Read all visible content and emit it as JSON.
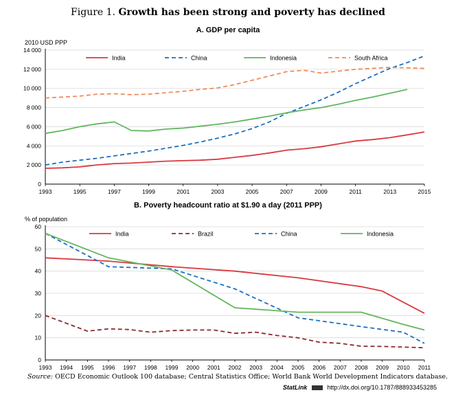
{
  "figure": {
    "label": "Figure 1.",
    "title": "Growth has been strong and poverty has declined",
    "source_label": "Source:",
    "source_text": "OECD Economic Outlook 100 database; Central Statistics Office; World Bank World Development Indicators database.",
    "statlink_label": "StatLink",
    "statlink_url": "http://dx.doi.org/10.1787/888933453285"
  },
  "chart_data": [
    {
      "type": "line",
      "title": "A. GDP per capita",
      "ylabel": "2010 USD PPP",
      "xlabel": "",
      "xlim": [
        1993,
        2015
      ],
      "ylim": [
        0,
        14000
      ],
      "x_ticks": [
        "1993",
        "1995",
        "1997",
        "1999",
        "2001",
        "2003",
        "2005",
        "2007",
        "2009",
        "2011",
        "2013",
        "2015"
      ],
      "y_ticks": [
        "0",
        "2 000",
        "4 000",
        "6 000",
        "8 000",
        "10 000",
        "12 000",
        "14 000"
      ],
      "legend_position": "top",
      "grid": "horizontal",
      "series": [
        {
          "name": "India",
          "color": "#d9393e",
          "dash": "solid",
          "x": [
            1993,
            1994,
            1995,
            1996,
            1997,
            1998,
            1999,
            2000,
            2001,
            2002,
            2003,
            2004,
            2005,
            2006,
            2007,
            2008,
            2009,
            2010,
            2011,
            2012,
            2013,
            2014,
            2015
          ],
          "values": [
            1650,
            1700,
            1800,
            2000,
            2150,
            2200,
            2300,
            2400,
            2450,
            2500,
            2600,
            2800,
            3000,
            3250,
            3550,
            3700,
            3900,
            4200,
            4500,
            4650,
            4850,
            5150,
            5450
          ]
        },
        {
          "name": "China",
          "color": "#1b6fbf",
          "dash": "dashed",
          "x": [
            1993,
            1994,
            1995,
            1996,
            1997,
            1998,
            1999,
            2000,
            2001,
            2002,
            2003,
            2004,
            2005,
            2006,
            2007,
            2008,
            2009,
            2010,
            2011,
            2012,
            2013,
            2014,
            2015
          ],
          "values": [
            2000,
            2300,
            2500,
            2700,
            2950,
            3200,
            3450,
            3750,
            4050,
            4400,
            4800,
            5250,
            5800,
            6500,
            7400,
            8100,
            8800,
            9600,
            10500,
            11300,
            12100,
            12700,
            13400
          ]
        },
        {
          "name": "Indonesia",
          "color": "#62b55e",
          "dash": "solid",
          "x": [
            1993,
            1994,
            1995,
            1996,
            1997,
            1998,
            1999,
            2000,
            2001,
            2002,
            2003,
            2004,
            2005,
            2006,
            2007,
            2008,
            2009,
            2010,
            2011,
            2012,
            2013,
            2014
          ],
          "values": [
            5300,
            5600,
            6000,
            6300,
            6500,
            5600,
            5550,
            5750,
            5850,
            6050,
            6250,
            6500,
            6800,
            7100,
            7450,
            7750,
            8000,
            8350,
            8750,
            9100,
            9500,
            9900
          ]
        },
        {
          "name": "South Africa",
          "color": "#f08a58",
          "dash": "dashed",
          "x": [
            1993,
            1994,
            1995,
            1996,
            1997,
            1998,
            1999,
            2000,
            2001,
            2002,
            2003,
            2004,
            2005,
            2006,
            2007,
            2008,
            2009,
            2010,
            2011,
            2012,
            2013,
            2014,
            2015
          ],
          "values": [
            9000,
            9100,
            9200,
            9400,
            9450,
            9350,
            9400,
            9550,
            9700,
            9900,
            10050,
            10400,
            10850,
            11300,
            11750,
            11900,
            11600,
            11800,
            12000,
            12100,
            12200,
            12150,
            12100
          ]
        }
      ]
    },
    {
      "type": "line",
      "title": "B. Poverty headcount ratio at $1.90 a day (2011 PPP)",
      "ylabel": "% of population",
      "xlabel": "",
      "xlim": [
        1993,
        2011
      ],
      "ylim": [
        0,
        60
      ],
      "x_ticks": [
        "1993",
        "1994",
        "1995",
        "1996",
        "1997",
        "1998",
        "1999",
        "2000",
        "2001",
        "2002",
        "2003",
        "2004",
        "2005",
        "2006",
        "2007",
        "2008",
        "2009",
        "2010",
        "2011"
      ],
      "y_ticks": [
        "0",
        "10",
        "20",
        "30",
        "40",
        "50",
        "60"
      ],
      "legend_position": "top",
      "grid": "horizontal",
      "series": [
        {
          "name": "India",
          "color": "#d9393e",
          "dash": "solid",
          "x": [
            1993,
            1996,
            1999,
            2002,
            2005,
            2008,
            2009,
            2010,
            2011
          ],
          "values": [
            46,
            44.5,
            42,
            40,
            37,
            33,
            31,
            26,
            21
          ]
        },
        {
          "name": "Brazil",
          "color": "#8b2a2e",
          "dash": "dashed",
          "x": [
            1993,
            1994,
            1995,
            1996,
            1997,
            1998,
            1999,
            2000,
            2001,
            2002,
            2003,
            2004,
            2005,
            2006,
            2007,
            2008,
            2009,
            2010,
            2011
          ],
          "values": [
            20,
            16.5,
            13,
            14,
            13.7,
            12.5,
            13.2,
            13.5,
            13.5,
            12,
            12.5,
            11,
            10,
            8,
            7.5,
            6.2,
            6.1,
            5.8,
            5.5
          ]
        },
        {
          "name": "China",
          "color": "#1b6fbf",
          "dash": "dashed",
          "x": [
            1993,
            1996,
            1999,
            2002,
            2005,
            2008,
            2010,
            2011
          ],
          "values": [
            57,
            42,
            41,
            32,
            19,
            15,
            12.5,
            7.5
          ]
        },
        {
          "name": "Indonesia",
          "color": "#62b55e",
          "dash": "solid",
          "x": [
            1993,
            1996,
            1999,
            2002,
            2005,
            2008,
            2010,
            2011
          ],
          "values": [
            57,
            46,
            40.5,
            23.5,
            21.5,
            21.5,
            16,
            13.5
          ]
        }
      ]
    }
  ]
}
